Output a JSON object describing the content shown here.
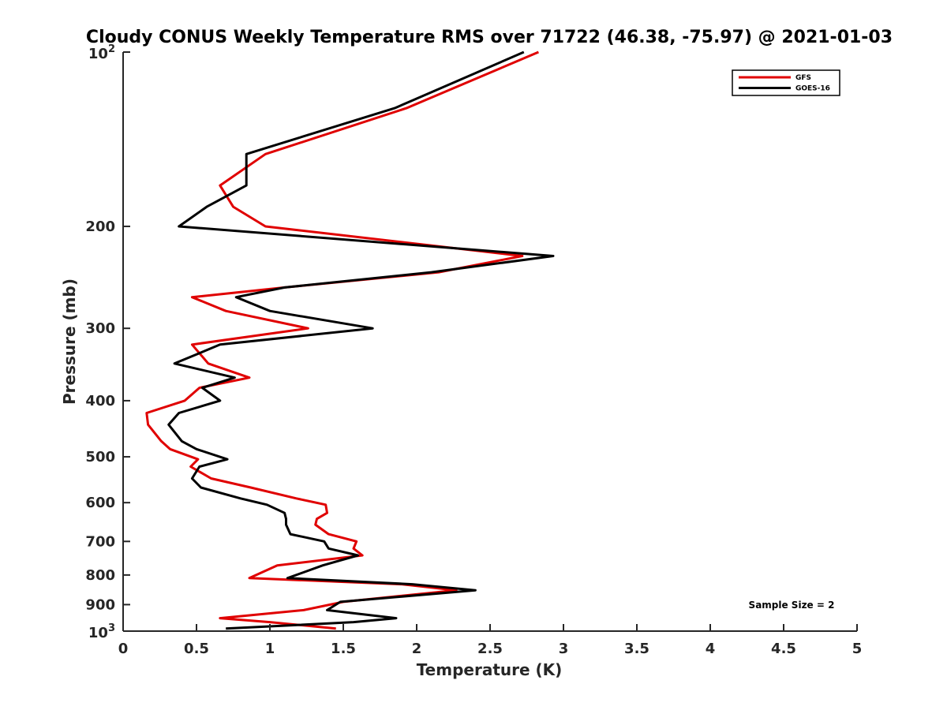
{
  "chart_data": {
    "type": "line",
    "title": "Cloudy CONUS Weekly Temperature RMS over 71722 (46.38, -75.97) @ 2021-01-03",
    "xlabel": "Temperature (K)",
    "ylabel": "Pressure (mb)",
    "xlim": [
      0,
      5
    ],
    "ylim": [
      100,
      1000
    ],
    "y_scale": "log",
    "y_reversed": true,
    "grid": false,
    "legend_position": "top-right",
    "x_ticks": [
      0,
      0.5,
      1,
      1.5,
      2,
      2.5,
      3,
      3.5,
      4,
      4.5,
      5
    ],
    "x_tick_labels": [
      "0",
      "0.5",
      "1",
      "1.5",
      "2",
      "2.5",
      "3",
      "3.5",
      "4",
      "4.5",
      "5"
    ],
    "y_ticks": [
      200,
      300,
      400,
      500,
      600,
      700,
      800,
      900
    ],
    "y_tick_labels": [
      "200",
      "300",
      "400",
      "500",
      "600",
      "700",
      "800",
      "900"
    ],
    "y_tick_base": "10",
    "y_top_exp": "2",
    "y_bottom_exp": "3",
    "annotation": "Sample Size = 2",
    "series": [
      {
        "name": "GFS",
        "color": "#e00000",
        "points": [
          [
            2.83,
            100
          ],
          [
            1.93,
            125
          ],
          [
            0.97,
            150
          ],
          [
            0.66,
            170
          ],
          [
            0.75,
            185
          ],
          [
            0.97,
            200
          ],
          [
            2.72,
            225
          ],
          [
            2.15,
            240
          ],
          [
            1.1,
            255
          ],
          [
            0.47,
            265
          ],
          [
            0.7,
            280
          ],
          [
            1.26,
            300
          ],
          [
            0.47,
            320
          ],
          [
            0.58,
            345
          ],
          [
            0.86,
            365
          ],
          [
            0.52,
            380
          ],
          [
            0.42,
            400
          ],
          [
            0.16,
            420
          ],
          [
            0.17,
            440
          ],
          [
            0.26,
            470
          ],
          [
            0.32,
            485
          ],
          [
            0.51,
            505
          ],
          [
            0.46,
            520
          ],
          [
            0.6,
            545
          ],
          [
            0.87,
            565
          ],
          [
            1.18,
            590
          ],
          [
            1.38,
            605
          ],
          [
            1.39,
            625
          ],
          [
            1.32,
            640
          ],
          [
            1.31,
            655
          ],
          [
            1.4,
            680
          ],
          [
            1.59,
            700
          ],
          [
            1.57,
            720
          ],
          [
            1.63,
            740
          ],
          [
            1.05,
            770
          ],
          [
            0.86,
            810
          ],
          [
            1.9,
            830
          ],
          [
            2.27,
            850
          ],
          [
            1.5,
            890
          ],
          [
            1.23,
            920
          ],
          [
            0.66,
            950
          ],
          [
            1.0,
            965
          ],
          [
            1.45,
            990
          ]
        ]
      },
      {
        "name": "GOES-16",
        "color": "#000000",
        "points": [
          [
            2.73,
            100
          ],
          [
            1.85,
            125
          ],
          [
            0.84,
            150
          ],
          [
            0.84,
            170
          ],
          [
            0.57,
            185
          ],
          [
            0.38,
            200
          ],
          [
            2.93,
            225
          ],
          [
            2.1,
            240
          ],
          [
            1.1,
            255
          ],
          [
            0.77,
            265
          ],
          [
            1.0,
            280
          ],
          [
            1.7,
            300
          ],
          [
            0.66,
            320
          ],
          [
            0.35,
            345
          ],
          [
            0.76,
            365
          ],
          [
            0.54,
            380
          ],
          [
            0.66,
            400
          ],
          [
            0.38,
            420
          ],
          [
            0.31,
            440
          ],
          [
            0.4,
            470
          ],
          [
            0.5,
            485
          ],
          [
            0.71,
            505
          ],
          [
            0.52,
            520
          ],
          [
            0.47,
            545
          ],
          [
            0.53,
            565
          ],
          [
            0.8,
            590
          ],
          [
            0.98,
            605
          ],
          [
            1.1,
            625
          ],
          [
            1.11,
            640
          ],
          [
            1.11,
            655
          ],
          [
            1.14,
            680
          ],
          [
            1.37,
            700
          ],
          [
            1.4,
            720
          ],
          [
            1.6,
            740
          ],
          [
            1.36,
            770
          ],
          [
            1.12,
            810
          ],
          [
            1.97,
            830
          ],
          [
            2.4,
            850
          ],
          [
            1.48,
            890
          ],
          [
            1.39,
            920
          ],
          [
            1.86,
            950
          ],
          [
            1.57,
            965
          ],
          [
            0.7,
            990
          ]
        ]
      }
    ]
  }
}
